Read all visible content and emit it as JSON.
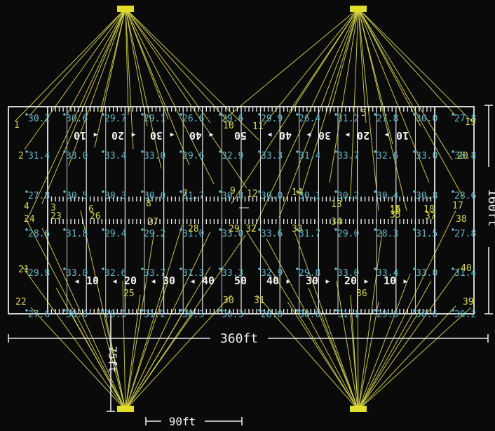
{
  "colors": {
    "background": "#0a0a0a",
    "field_line": "#e8e8e8",
    "aim_line": "#d8d84a",
    "fixture": "#e2dc2a",
    "pole_number": "#d8d84a",
    "illuminance": "#5fb7c9",
    "yard_number": "#f0f0f0"
  },
  "dimensions": {
    "length": "360ft",
    "width": "160ft",
    "pole_setback": "75ft",
    "pole_spacing": "90ft"
  },
  "yard_numbers": [
    "10",
    "20",
    "30",
    "40",
    "50",
    "40",
    "30",
    "20",
    "10"
  ],
  "illuminance_grid": [
    [
      "30.2",
      "30.6",
      "29.7",
      "29.1",
      "26.6",
      "29.6",
      "29.9",
      "26.4",
      "31.2",
      "27.8",
      "30.0",
      "27.8"
    ],
    [
      "31.4",
      "33.0",
      "33.4",
      "33.0",
      "29.6",
      "32.9",
      "33.3",
      "31.4",
      "33.7",
      "32.6",
      "33.0",
      "30.8"
    ],
    [
      "27.8",
      "30.5",
      "30.3",
      "30.0",
      "31.7",
      "30.8",
      "30.0",
      "30.1",
      "30.2",
      "30.4",
      "30.8",
      "28.6"
    ],
    [
      "28.6",
      "31.8",
      "29.4",
      "29.2",
      "31.0",
      "33.0",
      "33.6",
      "31.7",
      "29.0",
      "28.3",
      "31.5",
      "27.8"
    ],
    [
      "29.8",
      "33.0",
      "32.6",
      "33.7",
      "31.3",
      "33.3",
      "32.9",
      "29.8",
      "33.0",
      "33.4",
      "33.0",
      "31.4"
    ],
    [
      "27.6",
      "30.0",
      "29.3",
      "31.2",
      "30.3",
      "30.3",
      "28.0",
      "30.0",
      "31.1",
      "29.6",
      "30.6",
      "30.2"
    ]
  ],
  "aim_point_labels": [
    "1",
    "2",
    "3",
    "4",
    "5",
    "6",
    "7",
    "8",
    "9",
    "10",
    "11",
    "12",
    "13",
    "14",
    "15",
    "16",
    "17",
    "18",
    "19",
    "20",
    "21",
    "22",
    "23",
    "24",
    "25",
    "26",
    "27",
    "28",
    "29",
    "30",
    "31",
    "32",
    "33",
    "34",
    "35",
    "36",
    "37",
    "38",
    "39",
    "40"
  ]
}
